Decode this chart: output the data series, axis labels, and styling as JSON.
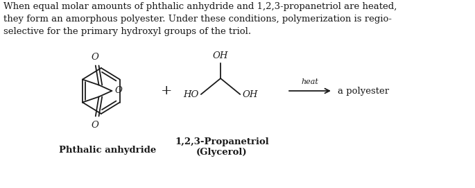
{
  "background_color": "#ffffff",
  "fig_width": 6.85,
  "fig_height": 2.71,
  "dpi": 100,
  "paragraph_text": "When equal molar amounts of phthalic anhydride and 1,2,3-propanetriol are heated,\nthey form an amorphous polyester. Under these conditions, polymerization is regio-\nselective for the primary hydroxyl groups of the triol.",
  "paragraph_fontsize": 9.5,
  "label_phthalic": "Phthalic anhydride",
  "label_propane1": "1,2,3-Propanetriol",
  "label_propane2": "(Glycerol)",
  "label_fontsize": 9.5,
  "text_color": "#1a1a1a",
  "struct_color": "#1a1a1a"
}
